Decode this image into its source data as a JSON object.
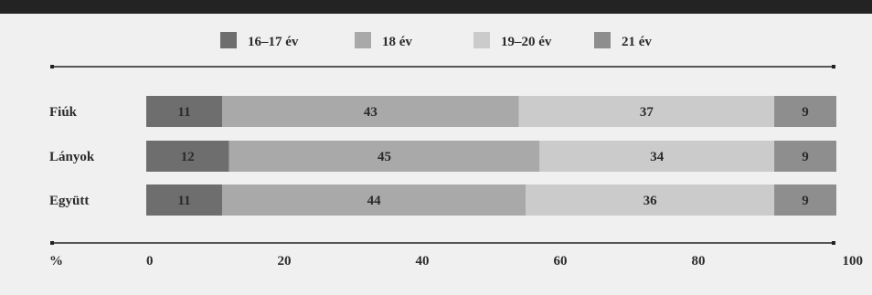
{
  "chart_data": {
    "type": "bar",
    "stacked": true,
    "orientation": "horizontal",
    "categories": [
      "Fiúk",
      "Lányok",
      "Együtt"
    ],
    "series": [
      {
        "name": "16–17 év",
        "values": [
          11,
          12,
          11
        ],
        "color": "#6e6e6e"
      },
      {
        "name": "18 év",
        "values": [
          43,
          45,
          44
        ],
        "color": "#a9a9a9"
      },
      {
        "name": "19–20 év",
        "values": [
          37,
          34,
          36
        ],
        "color": "#cbcbcb"
      },
      {
        "name": "21 év",
        "values": [
          9,
          9,
          9
        ],
        "color": "#8e8e8e"
      }
    ],
    "xlabel": "%",
    "xlim": [
      0,
      100
    ],
    "xticks": [
      0,
      20,
      40,
      60,
      80,
      100
    ],
    "legend_position": "top",
    "grid": false
  }
}
